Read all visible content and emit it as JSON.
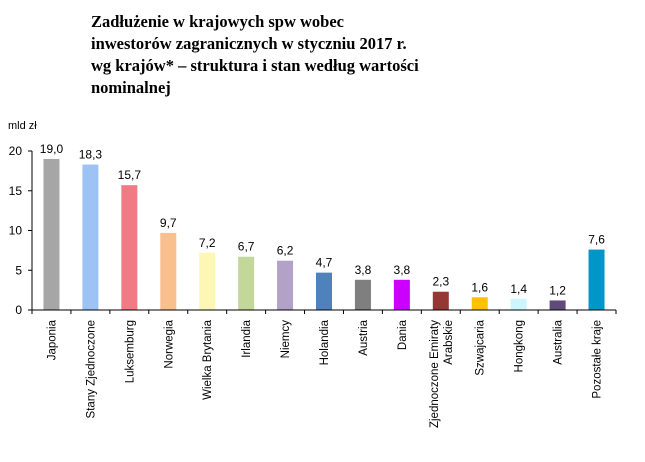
{
  "chart_data": {
    "type": "bar",
    "title_lines": [
      "Zadłużenie w krajowych spw wobec",
      "inwestorów zagranicznych w styczniu 2017 r.",
      "wg krajów* – struktura i stan według wartości",
      "nominalnej"
    ],
    "ylabel": "mld zł",
    "xlabel": "",
    "ylim": [
      0,
      20
    ],
    "yticks": [
      "0",
      "5",
      "10",
      "15",
      "20"
    ],
    "grid": false,
    "legend": "none",
    "categories": [
      "Japonia",
      "Stany Zjednoczone",
      "Luksemburg",
      "Norwegia",
      "Wielka Brytania",
      "Irlandia",
      "Niemcy",
      "Holandia",
      "Austria",
      "Dania",
      "Zjednoczone Emiraty Arabskie",
      "Szwajcaria",
      "Hongkong",
      "Australia",
      "Pozostałe kraje"
    ],
    "category_lines": [
      [
        "Japonia"
      ],
      [
        "Stany Zjednoczone"
      ],
      [
        "Luksemburg"
      ],
      [
        "Norwegia"
      ],
      [
        "Wielka Brytania"
      ],
      [
        "Irlandia"
      ],
      [
        "Niemcy"
      ],
      [
        "Holandia"
      ],
      [
        "Austria"
      ],
      [
        "Dania"
      ],
      [
        "Zjednoczone Emiraty",
        "Arabskie"
      ],
      [
        "Szwajcaria"
      ],
      [
        "Hongkong"
      ],
      [
        "Australia"
      ],
      [
        "Pozostałe kraje"
      ]
    ],
    "values": [
      19.0,
      18.3,
      15.7,
      9.7,
      7.2,
      6.7,
      6.2,
      4.7,
      3.8,
      3.8,
      2.3,
      1.6,
      1.4,
      1.2,
      7.6
    ],
    "value_labels": [
      "19,0",
      "18,3",
      "15,7",
      "9,7",
      "7,2",
      "6,7",
      "6,2",
      "4,7",
      "3,8",
      "3,8",
      "2,3",
      "1,6",
      "1,4",
      "1,2",
      "7,6"
    ],
    "colors": [
      "#a6a6a6",
      "#9dc3f5",
      "#f07b84",
      "#f9c08e",
      "#fcf7b4",
      "#c4d79b",
      "#b2a2c7",
      "#4f81bd",
      "#7f7f7f",
      "#cc00ff",
      "#953735",
      "#ffc000",
      "#ccf5ff",
      "#604a7b",
      "#0096c8"
    ]
  }
}
